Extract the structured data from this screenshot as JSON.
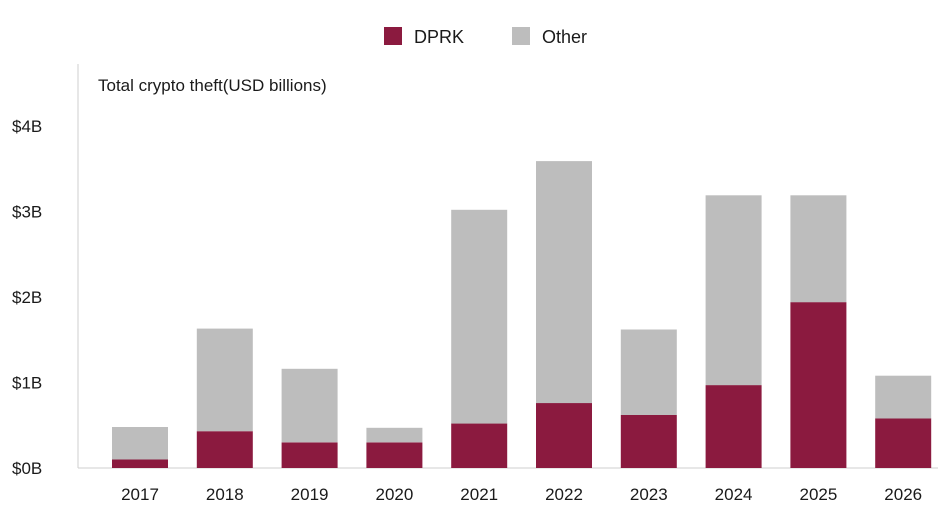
{
  "legend": {
    "items": [
      {
        "label": "DPRK",
        "color": "#8b1a3f"
      },
      {
        "label": "Other",
        "color": "#bdbdbd"
      }
    ]
  },
  "chart_data": {
    "type": "bar",
    "stacked": true,
    "subtitle": "Total crypto theft(USD billions)",
    "categories": [
      "2017",
      "2018",
      "2019",
      "2020",
      "2021",
      "2022",
      "2023",
      "2024",
      "2025",
      "2026"
    ],
    "series": [
      {
        "name": "DPRK",
        "color": "#8b1a3f",
        "values": [
          0.1,
          0.43,
          0.3,
          0.3,
          0.52,
          0.76,
          0.62,
          0.97,
          1.94,
          0.58
        ]
      },
      {
        "name": "Other",
        "color": "#bdbdbd",
        "values": [
          0.38,
          1.2,
          0.86,
          0.17,
          2.5,
          2.83,
          1.0,
          2.22,
          1.25,
          0.5
        ]
      }
    ],
    "yticks": [
      0,
      1,
      2,
      3,
      4
    ],
    "ytick_labels": [
      "$0B",
      "$1B",
      "$2B",
      "$3B",
      "$4B"
    ],
    "ylim": [
      0,
      4.4
    ],
    "grid": false,
    "legend_position": "top-center"
  }
}
